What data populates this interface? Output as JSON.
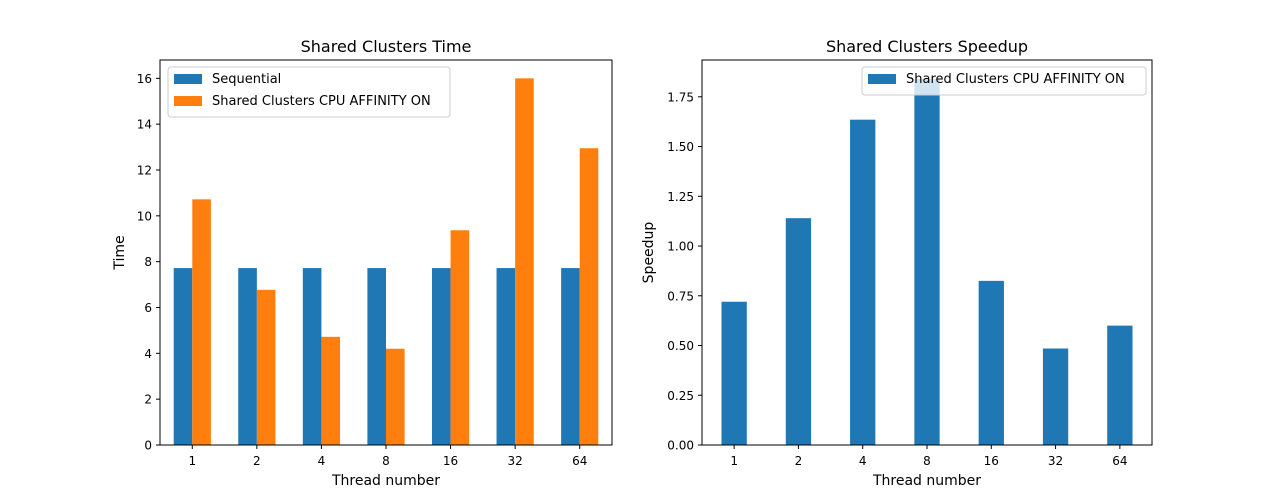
{
  "chart_data": [
    {
      "type": "bar",
      "title": "Shared Clusters Time",
      "xlabel": "Thread number",
      "ylabel": "Time",
      "categories": [
        "1",
        "2",
        "4",
        "8",
        "16",
        "32",
        "64"
      ],
      "series": [
        {
          "name": "Sequential",
          "values": [
            7.72,
            7.72,
            7.72,
            7.72,
            7.72,
            7.72,
            7.72
          ],
          "color": "#1f77b4"
        },
        {
          "name": "Shared Clusters CPU AFFINITY ON",
          "values": [
            10.72,
            6.77,
            4.72,
            4.2,
            9.37,
            16.0,
            12.95
          ],
          "color": "#ff7f0e"
        }
      ],
      "ylim": [
        0,
        16.8
      ],
      "yticks": [
        0,
        2,
        4,
        6,
        8,
        10,
        12,
        14,
        16
      ],
      "ytick_labels": [
        "0",
        "2",
        "4",
        "6",
        "8",
        "10",
        "12",
        "14",
        "16"
      ],
      "grid": false,
      "legend_position": "upper left"
    },
    {
      "type": "bar",
      "title": "Shared Clusters Speedup",
      "xlabel": "Thread number",
      "ylabel": "Speedup",
      "categories": [
        "1",
        "2",
        "4",
        "8",
        "16",
        "32",
        "64"
      ],
      "series": [
        {
          "name": "Shared Clusters CPU AFFINITY ON",
          "values": [
            0.72,
            1.14,
            1.635,
            1.84,
            0.825,
            0.485,
            0.6
          ],
          "color": "#1f77b4"
        }
      ],
      "ylim": [
        0,
        1.935
      ],
      "yticks": [
        0,
        0.25,
        0.5,
        0.75,
        1.0,
        1.25,
        1.5,
        1.75
      ],
      "ytick_labels": [
        "0.00",
        "0.25",
        "0.50",
        "0.75",
        "1.00",
        "1.25",
        "1.50",
        "1.75"
      ],
      "grid": false,
      "legend_position": "upper right"
    }
  ]
}
